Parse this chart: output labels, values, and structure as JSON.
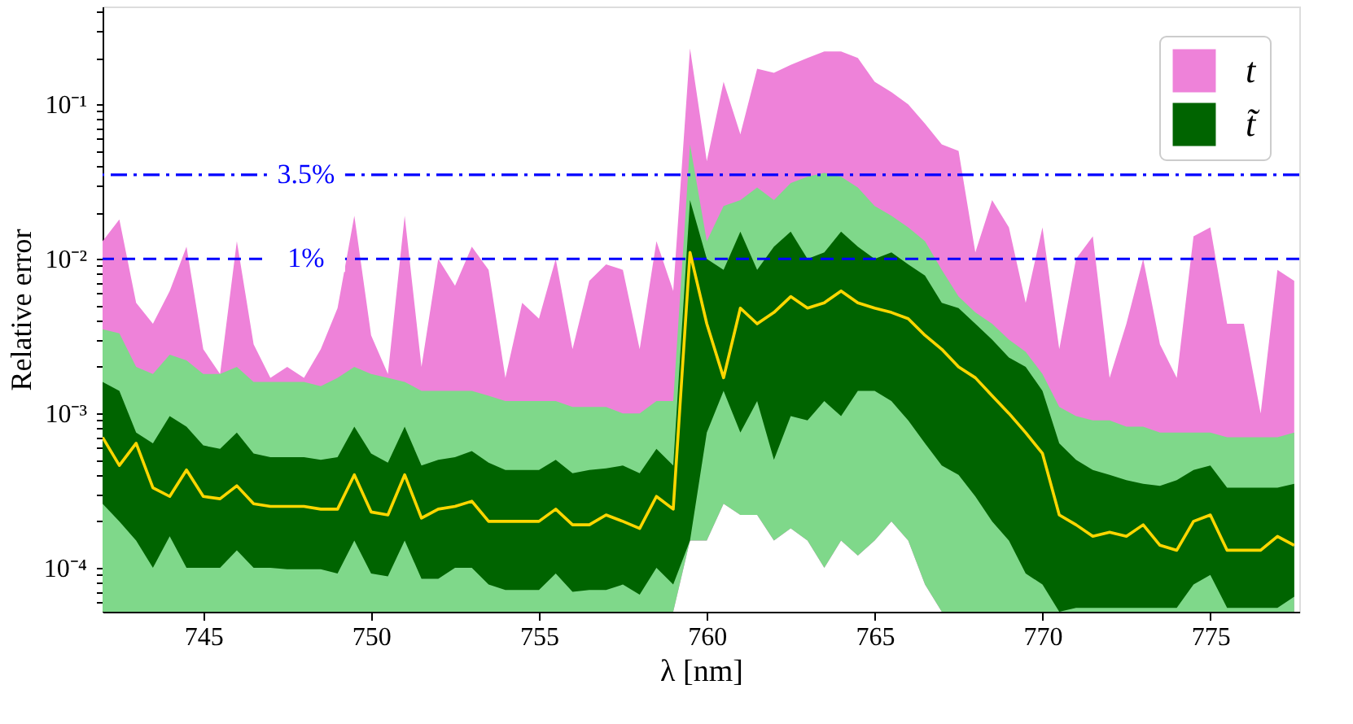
{
  "chart_data": {
    "type": "line",
    "xlabel": "λ [nm]",
    "ylabel": "Relative error",
    "x": [
      742,
      742.5,
      743,
      743.5,
      744,
      744.5,
      745,
      745.5,
      746,
      746.5,
      747,
      747.5,
      748,
      748.5,
      749,
      749.5,
      750,
      750.5,
      751,
      751.5,
      752,
      752.5,
      753,
      753.5,
      754,
      754.5,
      755,
      755.5,
      756,
      756.5,
      757,
      757.5,
      758,
      758.5,
      759,
      759.5,
      760,
      760.5,
      761,
      761.5,
      762,
      762.5,
      763,
      763.5,
      764,
      764.5,
      765,
      765.5,
      766,
      766.5,
      767,
      767.5,
      768,
      768.5,
      769,
      769.5,
      770,
      770.5,
      771,
      771.5,
      772,
      772.5,
      773,
      773.5,
      774,
      774.5,
      775,
      775.5,
      776,
      776.5,
      777,
      777.5
    ],
    "series": [
      {
        "name": "t",
        "color": "#ee82d9",
        "values": [
          null,
          null,
          null,
          null,
          null,
          null,
          null,
          null,
          null,
          null,
          null,
          null,
          null,
          null,
          null,
          null,
          null,
          null,
          null,
          null,
          null,
          null,
          null,
          null,
          null,
          null,
          null,
          null,
          null,
          null,
          null,
          null,
          null,
          null,
          null,
          null,
          null,
          null,
          null,
          null,
          null,
          null,
          null,
          null,
          null,
          null,
          null,
          null,
          null,
          null,
          null,
          null,
          null,
          null,
          null,
          null,
          null,
          null,
          null,
          null,
          null,
          null,
          null,
          null,
          null,
          null,
          null,
          null,
          null,
          null,
          null,
          null
        ],
        "upper": [
          0.013,
          0.018,
          0.0052,
          0.0038,
          0.0062,
          0.012,
          0.0026,
          0.0018,
          0.013,
          0.0028,
          0.0017,
          0.002,
          0.0017,
          0.0026,
          0.0048,
          0.019,
          0.0032,
          0.0018,
          0.019,
          0.002,
          0.01,
          0.0067,
          0.012,
          0.0085,
          0.0017,
          0.0052,
          0.0041,
          0.01,
          0.0026,
          0.0072,
          0.0092,
          0.0085,
          0.0026,
          0.013,
          0.0062,
          0.23,
          0.043,
          0.14,
          0.064,
          0.17,
          0.16,
          0.18,
          0.2,
          0.22,
          0.22,
          0.2,
          0.14,
          0.12,
          0.1,
          0.075,
          0.055,
          0.05,
          0.011,
          0.024,
          0.016,
          0.0052,
          0.016,
          0.0026,
          0.01,
          0.014,
          0.0017,
          0.0038,
          0.01,
          0.0028,
          0.0017,
          0.014,
          0.016,
          0.0038,
          0.0038,
          0.001,
          0.0085,
          0.0072
        ],
        "lower": [
          5.2e-05,
          5.2e-05,
          5.2e-05,
          5.2e-05,
          5.2e-05,
          5.2e-05,
          5.2e-05,
          5.2e-05,
          5.2e-05,
          5.2e-05,
          5.2e-05,
          5.2e-05,
          5.2e-05,
          5.2e-05,
          5.2e-05,
          5.2e-05,
          5.2e-05,
          5.2e-05,
          5.2e-05,
          5.2e-05,
          5.2e-05,
          5.2e-05,
          5.2e-05,
          5.2e-05,
          5.2e-05,
          5.2e-05,
          5.2e-05,
          5.2e-05,
          5.2e-05,
          5.2e-05,
          5.2e-05,
          5.2e-05,
          5.2e-05,
          5.2e-05,
          5.2e-05,
          0.00015,
          0.00015,
          0.00026,
          0.00022,
          0.00022,
          0.00015,
          0.00018,
          0.00015,
          0.0001,
          0.00015,
          0.00012,
          0.00015,
          0.0002,
          0.00015,
          7.8e-05,
          5.2e-05,
          5.2e-05,
          5.2e-05,
          5.2e-05,
          5.2e-05,
          5.2e-05,
          5.2e-05,
          5.2e-05,
          5.2e-05,
          5.2e-05,
          5.2e-05,
          5.2e-05,
          5.2e-05,
          5.2e-05,
          5.2e-05,
          5.2e-05,
          5.2e-05,
          5.2e-05,
          5.2e-05,
          5.2e-05,
          5.2e-05,
          5.2e-05
        ]
      },
      {
        "color": "#7fd88a",
        "values": [
          null,
          null,
          null,
          null,
          null,
          null,
          null,
          null,
          null,
          null,
          null,
          null,
          null,
          null,
          null,
          null,
          null,
          null,
          null,
          null,
          null,
          null,
          null,
          null,
          null,
          null,
          null,
          null,
          null,
          null,
          null,
          null,
          null,
          null,
          null,
          null,
          null,
          null,
          null,
          null,
          null,
          null,
          null,
          null,
          null,
          null,
          null,
          null,
          null,
          null,
          null,
          null,
          null,
          null,
          null,
          null,
          null,
          null,
          null,
          null,
          null,
          null,
          null,
          null,
          null,
          null,
          null,
          null,
          null,
          null,
          null,
          null
        ],
        "upper": [
          0.0035,
          0.0033,
          0.002,
          0.0018,
          0.0024,
          0.0022,
          0.0018,
          0.0018,
          0.002,
          0.0016,
          0.0016,
          0.0016,
          0.0016,
          0.0015,
          0.0017,
          0.002,
          0.0018,
          0.0017,
          0.0016,
          0.0014,
          0.0014,
          0.0014,
          0.0014,
          0.0013,
          0.0012,
          0.0012,
          0.0012,
          0.0012,
          0.0011,
          0.0011,
          0.0011,
          0.001,
          0.001,
          0.0012,
          0.0012,
          0.055,
          0.013,
          0.022,
          0.024,
          0.029,
          0.024,
          0.031,
          0.034,
          0.036,
          0.034,
          0.029,
          0.022,
          0.019,
          0.016,
          0.013,
          0.0085,
          0.0057,
          0.0045,
          0.0038,
          0.003,
          0.0025,
          0.0018,
          0.0011,
          0.00096,
          0.0009,
          0.0009,
          0.00082,
          0.00082,
          0.00075,
          0.00075,
          0.00075,
          0.00075,
          0.0007,
          0.0007,
          0.0007,
          0.0007,
          0.00075
        ],
        "lower": [
          5.2e-05,
          5.2e-05,
          5.2e-05,
          5.2e-05,
          5.2e-05,
          5.2e-05,
          5.2e-05,
          5.2e-05,
          5.2e-05,
          5.2e-05,
          5.2e-05,
          5.2e-05,
          5.2e-05,
          5.2e-05,
          5.2e-05,
          5.2e-05,
          5.2e-05,
          5.2e-05,
          5.2e-05,
          5.2e-05,
          5.2e-05,
          5.2e-05,
          5.2e-05,
          5.2e-05,
          5.2e-05,
          5.2e-05,
          5.2e-05,
          5.2e-05,
          5.2e-05,
          5.2e-05,
          5.2e-05,
          5.2e-05,
          5.2e-05,
          5.2e-05,
          5.2e-05,
          0.00015,
          0.00015,
          0.00026,
          0.00022,
          0.00022,
          0.00015,
          0.00018,
          0.00015,
          0.0001,
          0.00015,
          0.00012,
          0.00015,
          0.0002,
          0.00015,
          7.8e-05,
          5.2e-05,
          5.2e-05,
          5.2e-05,
          5.2e-05,
          5.2e-05,
          5.2e-05,
          5.2e-05,
          5.2e-05,
          5.2e-05,
          5.2e-05,
          5.2e-05,
          5.2e-05,
          5.2e-05,
          5.2e-05,
          5.2e-05,
          5.2e-05,
          5.2e-05,
          5.2e-05,
          5.2e-05,
          5.2e-05,
          5.2e-05,
          5.2e-05
        ]
      },
      {
        "name": "t̃",
        "color": "#006400",
        "values": [
          null,
          null,
          null,
          null,
          null,
          null,
          null,
          null,
          null,
          null,
          null,
          null,
          null,
          null,
          null,
          null,
          null,
          null,
          null,
          null,
          null,
          null,
          null,
          null,
          null,
          null,
          null,
          null,
          null,
          null,
          null,
          null,
          null,
          null,
          null,
          null,
          null,
          null,
          null,
          null,
          null,
          null,
          null,
          null,
          null,
          null,
          null,
          null,
          null,
          null,
          null,
          null,
          null,
          null,
          null,
          null,
          null,
          null,
          null,
          null,
          null,
          null,
          null,
          null,
          null,
          null,
          null,
          null,
          null,
          null,
          null,
          null
        ],
        "upper": [
          0.0016,
          0.0014,
          0.00075,
          0.00064,
          0.00096,
          0.00082,
          0.00062,
          0.00059,
          0.00075,
          0.00055,
          0.00052,
          0.00052,
          0.00052,
          0.0005,
          0.00052,
          0.00082,
          0.00055,
          0.00048,
          0.00082,
          0.00046,
          0.0005,
          0.00052,
          0.00057,
          0.00048,
          0.00043,
          0.00043,
          0.00043,
          0.0005,
          0.00041,
          0.00043,
          0.00044,
          0.00046,
          0.00041,
          0.00059,
          0.00046,
          0.024,
          0.01,
          0.0085,
          0.015,
          0.0085,
          0.012,
          0.015,
          0.01,
          0.011,
          0.015,
          0.012,
          0.01,
          0.011,
          0.0092,
          0.0078,
          0.0052,
          0.0048,
          0.0038,
          0.003,
          0.0023,
          0.002,
          0.0014,
          0.00064,
          0.0005,
          0.00043,
          0.0004,
          0.00037,
          0.00035,
          0.00034,
          0.00037,
          0.00043,
          0.00046,
          0.00033,
          0.00033,
          0.00033,
          0.00033,
          0.00035
        ],
        "lower": [
          0.00026,
          0.0002,
          0.00015,
          0.0001,
          0.00016,
          0.0001,
          0.0001,
          0.0001,
          0.00013,
          0.0001,
          0.0001,
          9.8e-05,
          9.8e-05,
          9.8e-05,
          9.2e-05,
          0.00015,
          9.2e-05,
          8.8e-05,
          0.00015,
          8.5e-05,
          8.5e-05,
          0.0001,
          0.0001,
          7.8e-05,
          7.2e-05,
          7.2e-05,
          7.2e-05,
          9.2e-05,
          7e-05,
          7.2e-05,
          7.2e-05,
          7.8e-05,
          6.7e-05,
          0.0001,
          7.8e-05,
          0.00015,
          0.00075,
          0.0014,
          0.00075,
          0.0012,
          0.0005,
          0.00096,
          0.0009,
          0.0012,
          0.00096,
          0.0014,
          0.0014,
          0.0012,
          0.0009,
          0.00064,
          0.00046,
          0.0004,
          0.00029,
          0.0002,
          0.00015,
          9.2e-05,
          7.8e-05,
          5.2e-05,
          5.5e-05,
          5.5e-05,
          5.5e-05,
          5.5e-05,
          5.5e-05,
          5.5e-05,
          5.5e-05,
          7.8e-05,
          9e-05,
          5.5e-05,
          5.5e-05,
          5.5e-05,
          5.5e-05,
          6.5e-05
        ]
      },
      {
        "color": "#ffd700",
        "values": [
          0.0007,
          0.00046,
          0.00064,
          0.00033,
          0.00029,
          0.00043,
          0.00029,
          0.00028,
          0.00034,
          0.00026,
          0.00025,
          0.00025,
          0.00025,
          0.00024,
          0.00024,
          0.0004,
          0.00023,
          0.00022,
          0.0004,
          0.00021,
          0.00024,
          0.00025,
          0.00027,
          0.0002,
          0.0002,
          0.0002,
          0.0002,
          0.00024,
          0.00019,
          0.00019,
          0.00022,
          0.0002,
          0.00018,
          0.00029,
          0.00024,
          0.011,
          0.0038,
          0.0017,
          0.0048,
          0.0038,
          0.0045,
          0.0057,
          0.0048,
          0.0052,
          0.0062,
          0.0052,
          0.0048,
          0.0045,
          0.0041,
          0.0032,
          0.0026,
          0.002,
          0.0017,
          0.0013,
          0.001,
          0.00075,
          0.00055,
          0.00022,
          0.00019,
          0.00016,
          0.00017,
          0.00016,
          0.00019,
          0.00014,
          0.00013,
          0.0002,
          0.00022,
          0.00013,
          0.00013,
          0.00013,
          0.00016,
          0.00014
        ]
      }
    ],
    "ref_lines": [
      {
        "axis": "y",
        "value": 0.035,
        "label": "3.5%",
        "color": "#0000ff",
        "line_style": "dashdot"
      },
      {
        "axis": "y",
        "value": 0.01,
        "label": "1%",
        "color": "#0000ff",
        "line_style": "dashed"
      }
    ],
    "xlim": [
      742,
      777.65
    ],
    "ylim": [
      5.2e-05,
      0.43
    ],
    "xticks": [
      745,
      750,
      755,
      760,
      765,
      770,
      775
    ],
    "yticks": [
      {
        "value": 0.0001,
        "label": "10⁻⁴"
      },
      {
        "value": 0.001,
        "label": "10⁻³"
      },
      {
        "value": 0.01,
        "label": "10⁻²"
      },
      {
        "value": 0.1,
        "label": "10⁻¹"
      },
      {
        "value": 6e-05,
        "label": null
      },
      {
        "value": 7e-05,
        "label": null
      },
      {
        "value": 8e-05,
        "label": null
      },
      {
        "value": 9e-05,
        "label": null
      },
      {
        "value": 0.0002,
        "label": null
      },
      {
        "value": 0.0003,
        "label": null
      },
      {
        "value": 0.0004,
        "label": null
      },
      {
        "value": 0.0005,
        "label": null
      },
      {
        "value": 0.0006,
        "label": null
      },
      {
        "value": 0.0007,
        "label": null
      },
      {
        "value": 0.0008,
        "label": null
      },
      {
        "value": 0.0009,
        "label": null
      },
      {
        "value": 0.002,
        "label": null
      },
      {
        "value": 0.003,
        "label": null
      },
      {
        "value": 0.004,
        "label": null
      },
      {
        "value": 0.005,
        "label": null
      },
      {
        "value": 0.006,
        "label": null
      },
      {
        "value": 0.007,
        "label": null
      },
      {
        "value": 0.008,
        "label": null
      },
      {
        "value": 0.009,
        "label": null
      },
      {
        "value": 0.02,
        "label": null
      },
      {
        "value": 0.03,
        "label": null
      },
      {
        "value": 0.04,
        "label": null
      },
      {
        "value": 0.05,
        "label": null
      },
      {
        "value": 0.06,
        "label": null
      },
      {
        "value": 0.07,
        "label": null
      },
      {
        "value": 0.08,
        "label": null
      },
      {
        "value": 0.09,
        "label": null
      },
      {
        "value": 0.2,
        "label": null
      },
      {
        "value": 0.3,
        "label": null
      },
      {
        "value": 0.4,
        "label": null
      }
    ],
    "log": "y",
    "grid": false,
    "legend": "top right"
  }
}
